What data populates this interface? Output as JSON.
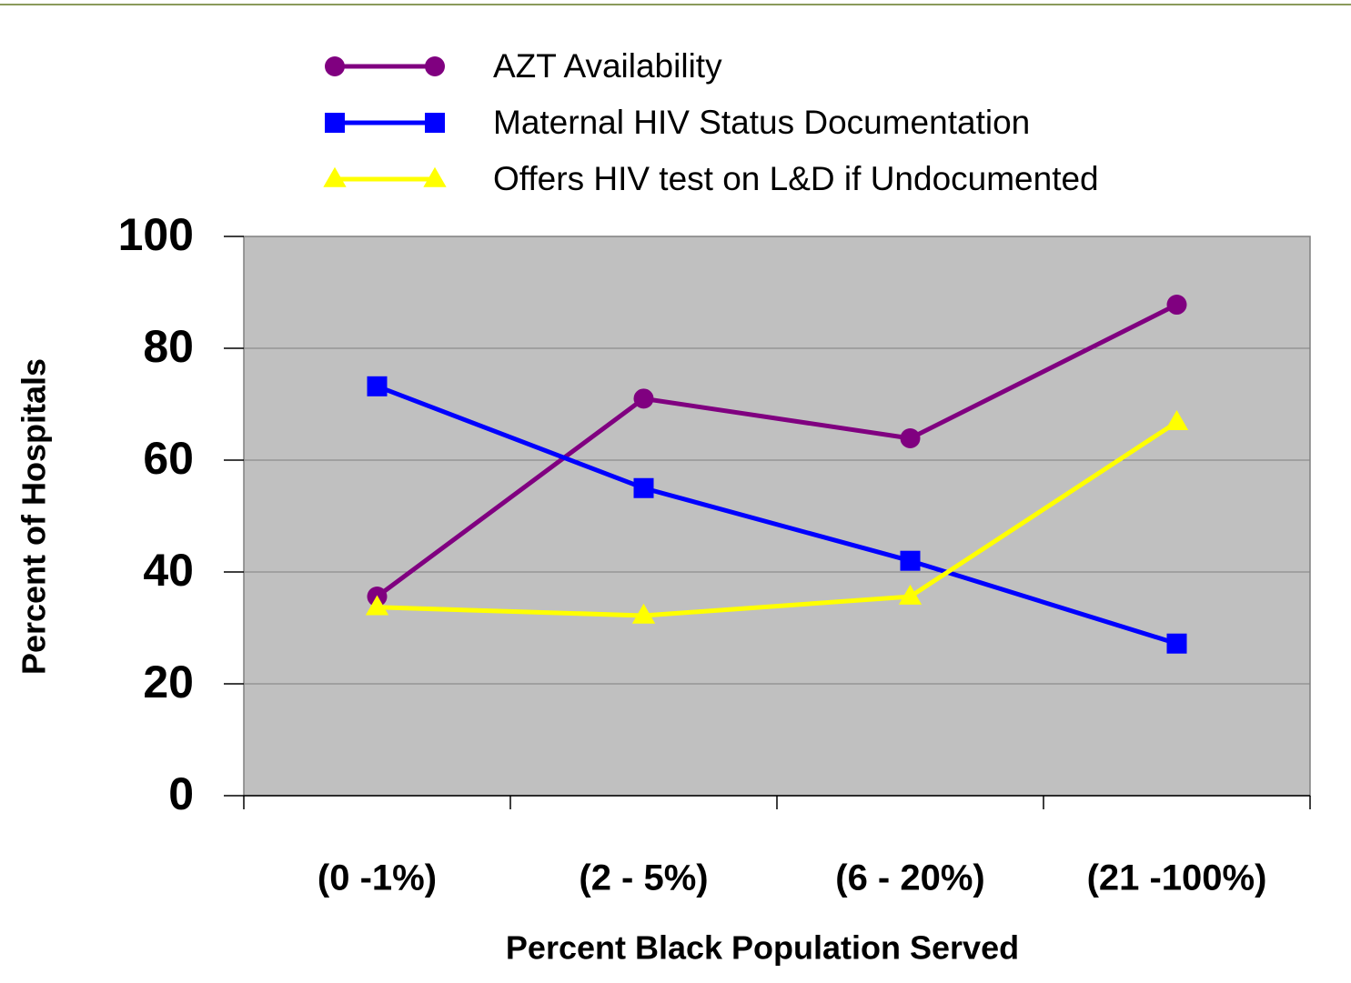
{
  "chart_data": {
    "type": "line",
    "x_label": "Percent Black Population Served",
    "y_label": "Percent of Hospitals",
    "categories": [
      "(0 -1%)",
      "(2 - 5%)",
      "(6 - 20%)",
      "(21 -100%)"
    ],
    "series": [
      {
        "name": "AZT Availability",
        "color": "#800080",
        "marker": "circle",
        "values": [
          35.6,
          71,
          63.9,
          87.8
        ]
      },
      {
        "name": "Maternal HIV Status Documentation",
        "color": "#0000ff",
        "marker": "square",
        "values": [
          73.2,
          55,
          42,
          27.2
        ]
      },
      {
        "name": "Offers HIV test on L&D if Undocumented",
        "color": "#ffff00",
        "marker": "triangle",
        "values": [
          33.7,
          32.2,
          35.6,
          66.8
        ]
      }
    ],
    "ylim": [
      0,
      100
    ],
    "yticks": [
      0,
      20,
      40,
      60,
      80,
      100
    ],
    "grid": true,
    "plot_background": "#c0c0c0"
  }
}
